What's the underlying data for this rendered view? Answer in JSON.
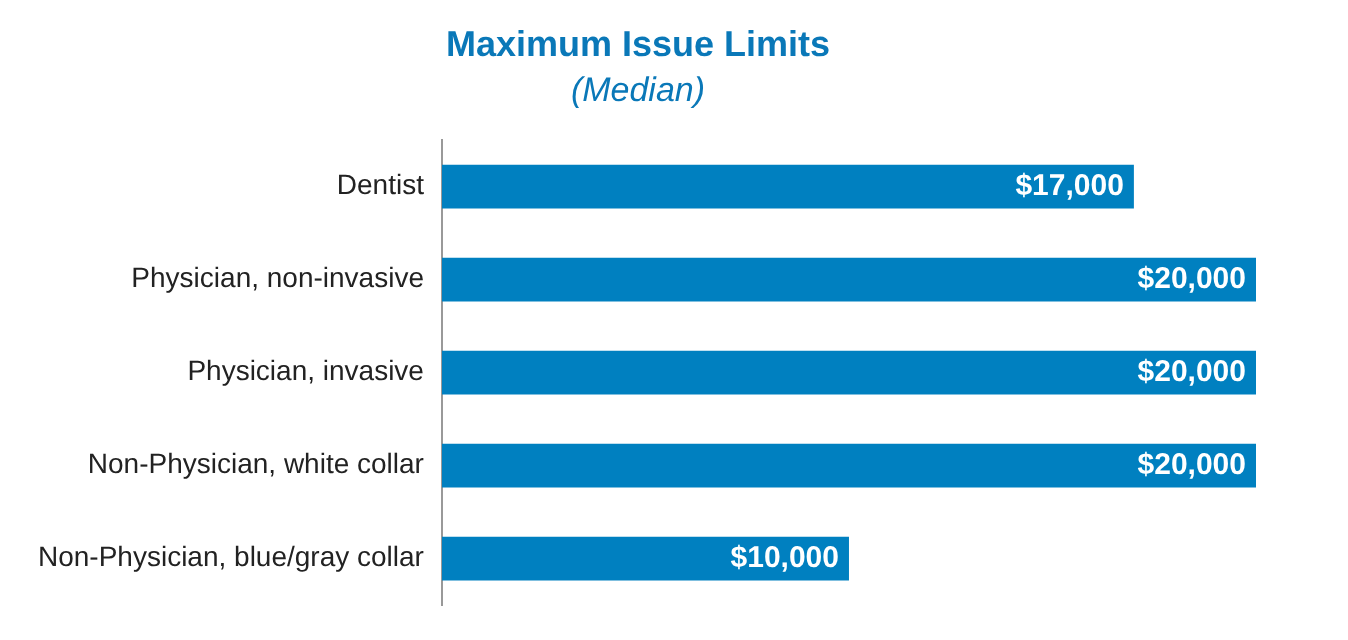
{
  "chart_data": {
    "type": "bar",
    "orientation": "horizontal",
    "title": "Maximum Issue Limits",
    "subtitle": "(Median)",
    "categories": [
      "Dentist",
      "Physician, non-invasive",
      "Physician, invasive",
      "Non-Physician, white collar",
      "Non-Physician, blue/gray collar"
    ],
    "values": [
      17000,
      20000,
      20000,
      20000,
      10000
    ],
    "value_labels": [
      "$17,000",
      "$20,000",
      "$20,000",
      "$20,000",
      "$10,000"
    ],
    "color": "#0080c0",
    "xlim": [
      0,
      20000
    ],
    "tick_labels": "y"
  }
}
